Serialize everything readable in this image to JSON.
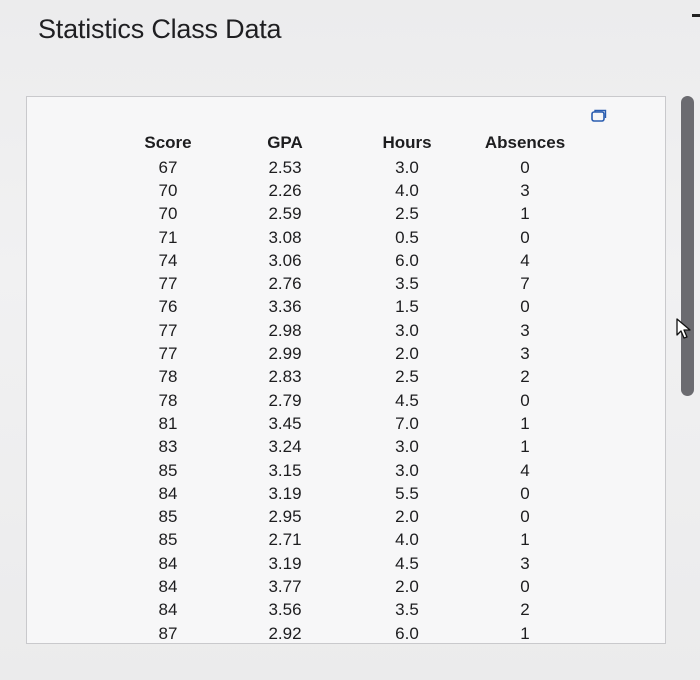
{
  "page": {
    "title": "Statistics Class Data"
  },
  "table": {
    "headers": [
      "Score",
      "GPA",
      "Hours",
      "Absences"
    ],
    "rows": [
      [
        "67",
        "2.53",
        "3.0",
        "0"
      ],
      [
        "70",
        "2.26",
        "4.0",
        "3"
      ],
      [
        "70",
        "2.59",
        "2.5",
        "1"
      ],
      [
        "71",
        "3.08",
        "0.5",
        "0"
      ],
      [
        "74",
        "3.06",
        "6.0",
        "4"
      ],
      [
        "77",
        "2.76",
        "3.5",
        "7"
      ],
      [
        "76",
        "3.36",
        "1.5",
        "0"
      ],
      [
        "77",
        "2.98",
        "3.0",
        "3"
      ],
      [
        "77",
        "2.99",
        "2.0",
        "3"
      ],
      [
        "78",
        "2.83",
        "2.5",
        "2"
      ],
      [
        "78",
        "2.79",
        "4.5",
        "0"
      ],
      [
        "81",
        "3.45",
        "7.0",
        "1"
      ],
      [
        "83",
        "3.24",
        "3.0",
        "1"
      ],
      [
        "85",
        "3.15",
        "3.0",
        "4"
      ],
      [
        "84",
        "3.19",
        "5.5",
        "0"
      ],
      [
        "85",
        "2.95",
        "2.0",
        "0"
      ],
      [
        "85",
        "2.71",
        "4.0",
        "1"
      ],
      [
        "84",
        "3.19",
        "4.5",
        "3"
      ],
      [
        "84",
        "3.77",
        "2.0",
        "0"
      ],
      [
        "84",
        "3.56",
        "3.5",
        "2"
      ],
      [
        "87",
        "2.92",
        "6.0",
        "1"
      ]
    ]
  },
  "icons": {
    "copy": "copy-data-icon",
    "cursor": "mouse-pointer-icon"
  },
  "colors": {
    "background": "#ececed",
    "panel": "#f7f7f8",
    "scrollbar": "#6b6b70"
  }
}
